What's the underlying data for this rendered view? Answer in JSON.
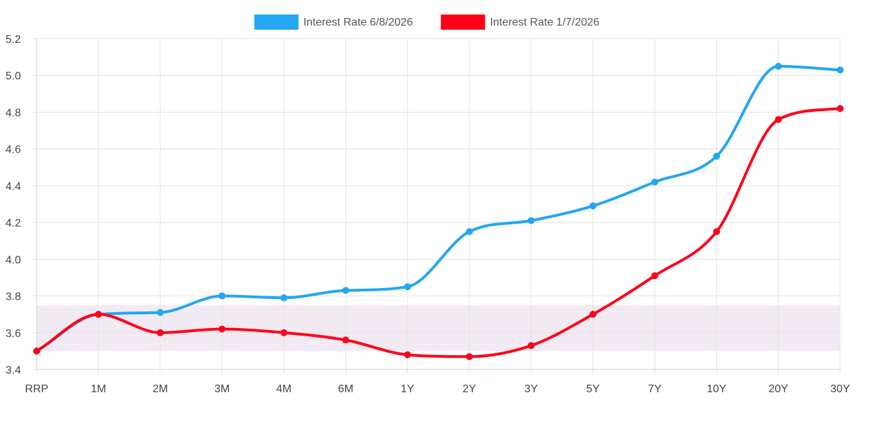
{
  "chart_data": {
    "type": "line",
    "categories": [
      "RRP",
      "1M",
      "2M",
      "3M",
      "4M",
      "6M",
      "1Y",
      "2Y",
      "3Y",
      "5Y",
      "7Y",
      "10Y",
      "20Y",
      "30Y"
    ],
    "series": [
      {
        "name": "Interest Rate 6/8/2026",
        "color": "#22a7f0",
        "values": [
          3.5,
          3.7,
          3.71,
          3.8,
          3.79,
          3.83,
          3.85,
          4.15,
          4.21,
          4.29,
          4.42,
          4.56,
          5.05,
          5.03
        ]
      },
      {
        "name": "Interest Rate 1/7/2026",
        "color": "#ff0019",
        "values": [
          3.5,
          3.7,
          3.6,
          3.62,
          3.6,
          3.56,
          3.48,
          3.47,
          3.53,
          3.7,
          3.91,
          4.15,
          4.76,
          4.82
        ]
      }
    ],
    "ylim": [
      3.4,
      5.2
    ],
    "yticks": [
      "3.4",
      "3.6",
      "3.8",
      "4.0",
      "4.2",
      "4.4",
      "4.6",
      "4.8",
      "5.0",
      "5.2"
    ],
    "shaded_band": {
      "from": 3.5,
      "to": 3.75,
      "color": "#f2eaf2"
    },
    "grid": true,
    "legend": "top-center",
    "title": "",
    "xlabel": "",
    "ylabel": ""
  }
}
